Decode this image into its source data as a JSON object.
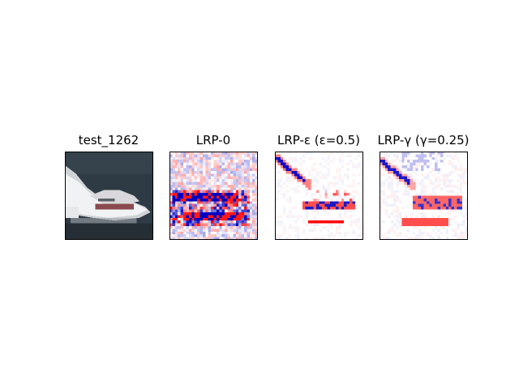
{
  "figure": {
    "panels": [
      {
        "title": "test_1262",
        "kind": "image",
        "icon": "boat-photo"
      },
      {
        "title": "LRP-0",
        "kind": "heatmap",
        "icon": "relevance-heatmap"
      },
      {
        "title": "LRP-ε (ε=0.5)",
        "kind": "heatmap",
        "icon": "relevance-heatmap"
      },
      {
        "title": "LRP-γ (γ=0.25)",
        "kind": "heatmap",
        "icon": "relevance-heatmap"
      }
    ],
    "colors": {
      "positive": "#e8141a",
      "negative": "#1414c8",
      "neutral": "#ffffff",
      "water": "#2b353d",
      "hull": "#e8e8ec",
      "frame": "#000000"
    }
  }
}
